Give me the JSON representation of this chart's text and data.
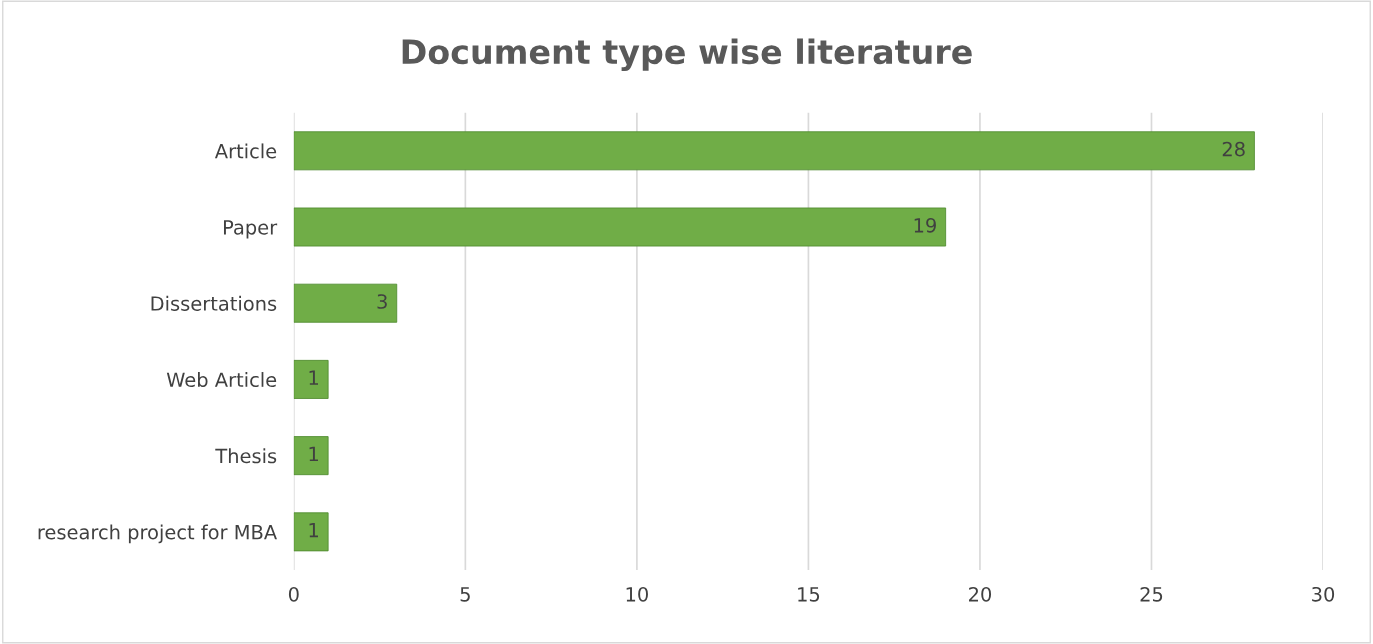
{
  "chart_data": {
    "type": "bar",
    "orientation": "horizontal",
    "title": "Document type wise literature",
    "categories": [
      "Article",
      "Paper",
      "Dissertations",
      "Web Article",
      "Thesis",
      "research project for MBA"
    ],
    "values": [
      28,
      19,
      3,
      1,
      1,
      1
    ],
    "color": "#70ad47",
    "xlim": [
      0,
      30
    ],
    "xticks": [
      0,
      5,
      10,
      15,
      20,
      25,
      30
    ],
    "grid": "x",
    "data_labels": true
  }
}
